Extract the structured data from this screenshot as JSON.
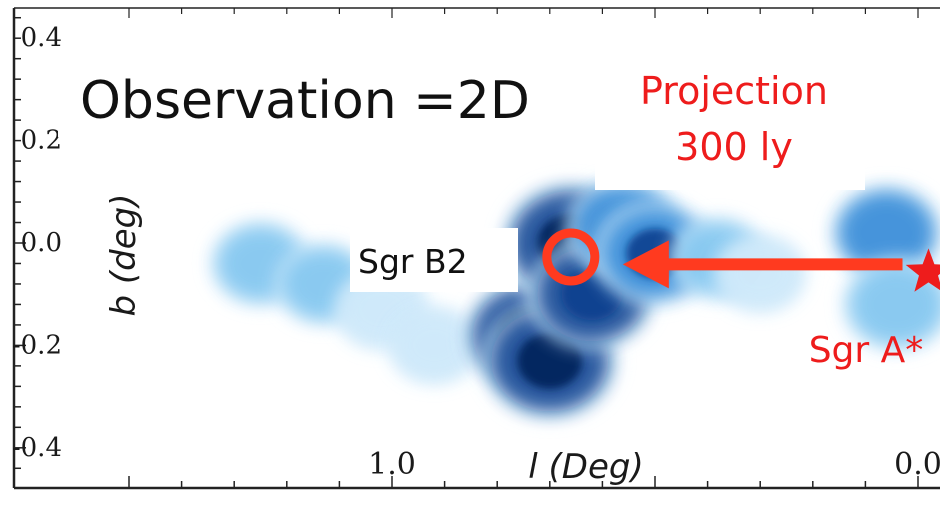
{
  "chart_data": {
    "type": "heatmap",
    "x_axis": {
      "label": "l (Deg)",
      "tick_labels": [
        "1.0",
        "0.0"
      ],
      "ticks": [
        1.0,
        0.0
      ],
      "range": [
        1.5,
        -0.05
      ],
      "direction": "decreasing"
    },
    "y_axis": {
      "label": "b (deg)",
      "tick_labels": [
        "0.4",
        "0.2",
        "0.0",
        "-0.2",
        "-0.4"
      ],
      "ticks": [
        0.4,
        0.2,
        0.0,
        -0.2,
        -0.4
      ],
      "range": [
        -0.48,
        0.45
      ]
    },
    "colormap": [
      "#cfe9fa",
      "#7ec4ef",
      "#2f86d6",
      "#0a3f8f",
      "#03215a"
    ],
    "emission_regions": [
      {
        "l": 1.25,
        "b": -0.04,
        "intensity": 0.35
      },
      {
        "l": 1.13,
        "b": -0.08,
        "intensity": 0.3
      },
      {
        "l": 1.02,
        "b": -0.13,
        "intensity": 0.25
      },
      {
        "l": 0.92,
        "b": -0.2,
        "intensity": 0.2
      },
      {
        "l": 0.74,
        "b": -0.18,
        "intensity": 0.85
      },
      {
        "l": 0.7,
        "b": -0.23,
        "intensity": 0.95
      },
      {
        "l": 0.66,
        "b": 0.0,
        "intensity": 1.0
      },
      {
        "l": 0.62,
        "b": -0.1,
        "intensity": 0.8
      },
      {
        "l": 0.56,
        "b": 0.03,
        "intensity": 0.6
      },
      {
        "l": 0.5,
        "b": -0.02,
        "intensity": 0.7
      },
      {
        "l": 0.38,
        "b": -0.03,
        "intensity": 0.3
      },
      {
        "l": 0.3,
        "b": -0.06,
        "intensity": 0.2
      },
      {
        "l": 0.06,
        "b": 0.02,
        "intensity": 0.55
      },
      {
        "l": 0.04,
        "b": -0.12,
        "intensity": 0.5
      }
    ],
    "markers": [
      {
        "name": "Sgr B2",
        "l": 0.66,
        "b": 0.0,
        "symbol": "ring",
        "color": "#ff3a1f"
      },
      {
        "name": "Sgr A*",
        "l": -0.02,
        "b": -0.03,
        "symbol": "star",
        "color": "#ee1c1c"
      }
    ],
    "arrow": {
      "from_l": -0.02,
      "to_l": 0.66,
      "b": -0.03,
      "color": "#ff3a1f"
    }
  },
  "annotations": {
    "observation_label": "Observation =2D",
    "projection_line1": "Projection",
    "projection_line2": "300 ly",
    "sgr_b2_label": "Sgr B2",
    "sgr_a_label": "Sgr A*"
  },
  "colors": {
    "accent_red": "#ee1c1c",
    "arrow_red": "#ff3a1f",
    "axis": "#222222"
  }
}
